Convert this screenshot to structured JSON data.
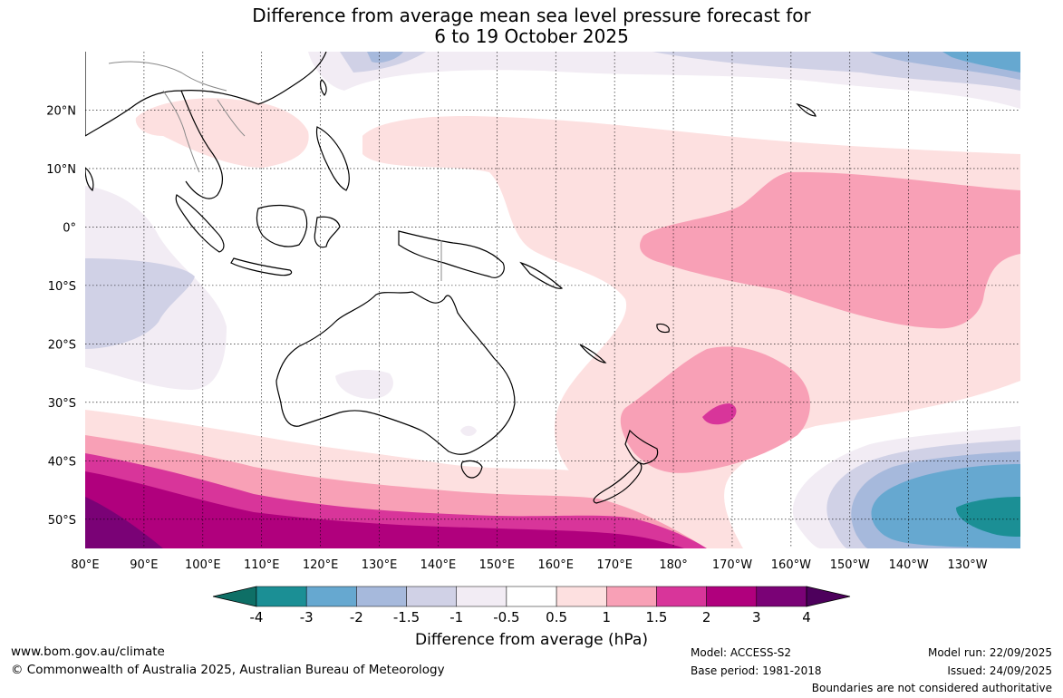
{
  "title": {
    "line1": "Difference from average mean sea level pressure forecast for",
    "line2": "6 to 19 October 2025"
  },
  "map": {
    "longitude_labels": [
      "80°E",
      "90°E",
      "100°E",
      "110°E",
      "120°E",
      "130°E",
      "140°E",
      "150°E",
      "160°E",
      "170°E",
      "180°",
      "170°W",
      "160°W",
      "150°W",
      "140°W",
      "130°W"
    ],
    "latitude_labels": [
      "20°N",
      "10°N",
      "0°",
      "10°S",
      "20°S",
      "30°S",
      "40°S",
      "50°S"
    ],
    "extent": {
      "lon_min": 80,
      "lon_max": 239,
      "lat_min": -55,
      "lat_max": 30
    }
  },
  "colorbar": {
    "title": "Difference from average (hPa)",
    "labels": [
      "-4",
      "-3",
      "-2",
      "-1.5",
      "-1",
      "-0.5",
      "0.5",
      "1",
      "1.5",
      "2",
      "3",
      "4"
    ],
    "colors": [
      "#0e6f66",
      "#1b8f95",
      "#66a8d0",
      "#a6b9dc",
      "#d0d1e6",
      "#f2ecf4",
      "#ffffff",
      "#fde0e0",
      "#f8a0b6",
      "#d8359a",
      "#b0007d",
      "#7a0276",
      "#4d005c"
    ]
  },
  "footer": {
    "website": "www.bom.gov.au/climate",
    "copyright": "© Commonwealth of Australia 2025, Australian Bureau of Meteorology",
    "model": "Model: ACCESS-S2",
    "base_period": "Base period: 1981-2018",
    "model_run": "Model run: 22/09/2025",
    "issued": "Issued: 24/09/2025",
    "disclaimer": "Boundaries are not considered authoritative"
  }
}
